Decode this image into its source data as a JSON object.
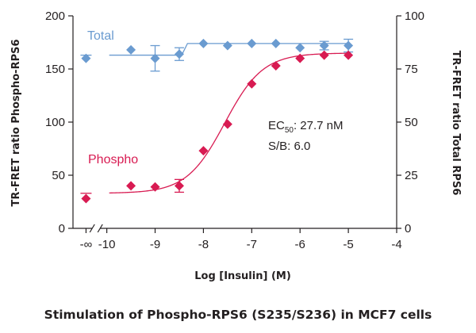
{
  "caption": "Stimulation of Phospho-RPS6 (S235/S236) in MCF7 cells",
  "chart_data": {
    "type": "scatter",
    "xlabel": "Log [Insulin] (M)",
    "ylabel_left": "TR-FRET ratio Phospho-RPS6",
    "ylabel_right": "TR-FRET ratio Total RPS6",
    "x_tick_labels": [
      "-∞",
      "-10",
      "-9",
      "-8",
      "-7",
      "-6",
      "-5",
      "-4"
    ],
    "xlim": [
      -10.7,
      -4
    ],
    "y_left_ticks": [
      "0",
      "50",
      "100",
      "150",
      "200"
    ],
    "ylim_left": [
      0,
      200
    ],
    "y_right_ticks": [
      "0",
      "25",
      "50",
      "75",
      "100"
    ],
    "ylim_right": [
      0,
      100
    ],
    "series": [
      {
        "name": "Total",
        "axis": "right",
        "color": "#6a9bd0",
        "marker": "diamond",
        "x": [
          -10.43,
          -9.5,
          -9.0,
          -8.5,
          -8.0,
          -7.5,
          -7.0,
          -6.5,
          -6.0,
          -5.5,
          -5.0
        ],
        "y": [
          80,
          84,
          80,
          82,
          87,
          86,
          87,
          87,
          85,
          86,
          86
        ],
        "error": [
          0,
          0,
          6,
          3,
          0,
          0,
          0,
          0,
          0,
          2,
          3
        ],
        "fit": {
          "type": "flat-step",
          "low": 81.5,
          "high": 87,
          "step_x": -8.45
        }
      },
      {
        "name": "Phospho",
        "axis": "left",
        "color": "#d81b52",
        "marker": "diamond",
        "x": [
          -10.43,
          -9.5,
          -9.0,
          -8.5,
          -8.0,
          -7.5,
          -7.0,
          -6.5,
          -6.0,
          -5.5,
          -5.0
        ],
        "y": [
          28,
          40,
          39,
          40,
          73,
          98,
          136,
          153,
          160,
          163,
          163
        ],
        "error": [
          0,
          0,
          0,
          6,
          0,
          0,
          0,
          0,
          0,
          0,
          0
        ],
        "fit": {
          "type": "4PL",
          "bottom": 33,
          "top": 165,
          "logEC50": -7.56,
          "hill": 1.1
        }
      }
    ],
    "annotations": {
      "ec50_label": "EC",
      "ec50_sub": "50",
      "ec50_value": ": 27.7 nM",
      "sb": "S/B: 6.0"
    },
    "grid": false
  }
}
